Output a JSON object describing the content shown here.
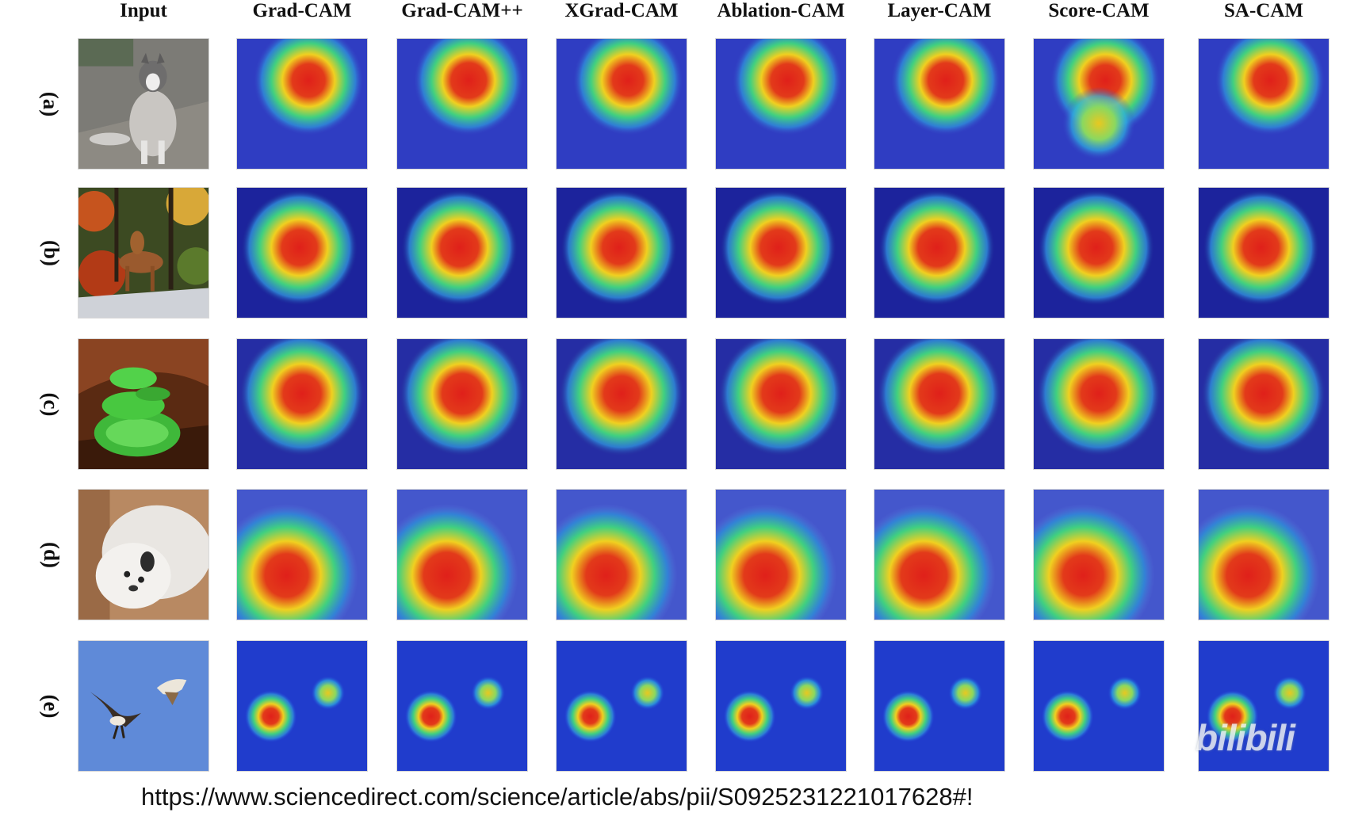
{
  "figure": {
    "columns": [
      "Input",
      "Grad-CAM",
      "Grad-CAM++",
      "XGrad-CAM",
      "Ablation-CAM",
      "Layer-CAM",
      "Score-CAM",
      "SA-CAM"
    ],
    "rows": [
      {
        "label": "(a)",
        "subject": "husky-dog"
      },
      {
        "label": "(b)",
        "subject": "brown-dog-in-forest"
      },
      {
        "label": "(c)",
        "subject": "green-snake"
      },
      {
        "label": "(d)",
        "subject": "white-fluffy-dog"
      },
      {
        "label": "(e)",
        "subject": "two-birds-flying"
      }
    ]
  },
  "source_url": "https://www.sciencedirect.com/science/article/abs/pii/S0925231221017628#!",
  "watermark": "bilibili",
  "colors": {
    "heat_hot": "#e0201a",
    "heat_warm": "#f0d020",
    "heat_mid": "#40d080",
    "heat_cold": "#1e2ab8"
  }
}
